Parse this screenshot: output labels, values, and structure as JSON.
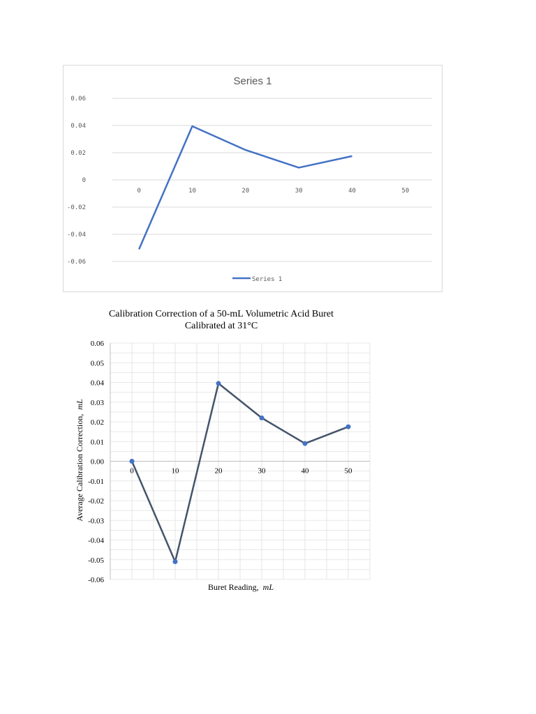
{
  "chart_data": [
    {
      "type": "line",
      "title": "Series 1",
      "xlabel": "",
      "ylabel": "",
      "categories": [
        "0",
        "10",
        "20",
        "30",
        "40",
        "50"
      ],
      "series": [
        {
          "name": "Series 1",
          "values": [
            -0.051,
            0.0395,
            0.022,
            0.009,
            0.0175,
            null
          ]
        }
      ],
      "yticks": [
        "0.06",
        "0.04",
        "0.02",
        "0",
        "-0.02",
        "-0.04",
        "-0.06"
      ],
      "ylim": [
        -0.06,
        0.06
      ],
      "grid": true,
      "legend": "bottom",
      "colors": {
        "line": "#4472c4",
        "grid": "#d9d9d9",
        "text": "#595959",
        "title": "#595959"
      }
    },
    {
      "type": "line",
      "title": "Calibration Correction of a 50-mL Volumetric Acid Buret",
      "subtitle": "Calibrated at 31°C",
      "xlabel": "Buret Reading,",
      "xlabel_unit": "mL",
      "ylabel": "Average Calibration Correction,",
      "ylabel_unit": "mL",
      "x": [
        0,
        10,
        20,
        30,
        40,
        50
      ],
      "categories": [
        "0",
        "10",
        "20",
        "30",
        "40",
        "50"
      ],
      "series": [
        {
          "values": [
            0.0,
            -0.051,
            0.0395,
            0.022,
            0.009,
            0.0175
          ]
        }
      ],
      "yticks": [
        "0.06",
        "0.05",
        "0.04",
        "0.03",
        "0.02",
        "0.01",
        "0.00",
        "-0.01",
        "-0.02",
        "-0.03",
        "-0.04",
        "-0.05",
        "-0.06"
      ],
      "ylim": [
        -0.06,
        0.06
      ],
      "grid": true,
      "legend": "none",
      "colors": {
        "line": "#44546a",
        "marker": "#4472c4",
        "grid": "#e0e0e0",
        "axis": "#bfbfbf",
        "text": "#000000"
      }
    }
  ]
}
